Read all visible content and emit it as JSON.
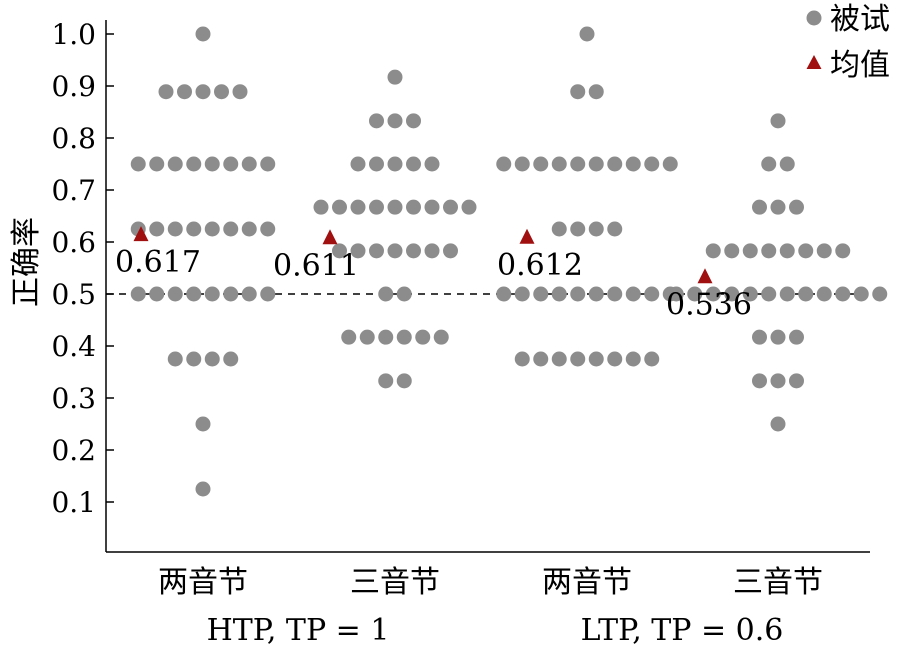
{
  "chart_data": {
    "type": "scatter",
    "ylabel": "正确率",
    "ylim": [
      0,
      1.0
    ],
    "yticks": [
      "0.1",
      "0.2",
      "0.3",
      "0.4",
      "0.5",
      "0.6",
      "0.7",
      "0.8",
      "0.9",
      "1.0"
    ],
    "reference_line": 0.5,
    "legend_position": "top-right",
    "legend": [
      {
        "label": "被试",
        "marker": "circle",
        "color": "#8c8c8c"
      },
      {
        "label": "均值",
        "marker": "triangle",
        "color": "#a01010"
      }
    ],
    "groups": [
      {
        "label": "HTP, TP = 1",
        "categories": [
          "两音节",
          "三音节"
        ]
      },
      {
        "label": "LTP, TP = 0.6",
        "categories": [
          "两音节",
          "三音节"
        ]
      }
    ],
    "series": [
      {
        "category": "两音节",
        "group": "HTP, TP = 1",
        "mean": 0.617,
        "mean_label": "0.617",
        "points": [
          {
            "y": 1.0,
            "n": 1
          },
          {
            "y": 0.889,
            "n": 5
          },
          {
            "y": 0.75,
            "n": 8
          },
          {
            "y": 0.625,
            "n": 8
          },
          {
            "y": 0.5,
            "n": 8
          },
          {
            "y": 0.375,
            "n": 4
          },
          {
            "y": 0.25,
            "n": 1
          },
          {
            "y": 0.125,
            "n": 1
          }
        ]
      },
      {
        "category": "三音节",
        "group": "HTP, TP = 1",
        "mean": 0.611,
        "mean_label": "0.611",
        "points": [
          {
            "y": 0.917,
            "n": 1
          },
          {
            "y": 0.833,
            "n": 3
          },
          {
            "y": 0.75,
            "n": 5
          },
          {
            "y": 0.667,
            "n": 9
          },
          {
            "y": 0.583,
            "n": 7
          },
          {
            "y": 0.5,
            "n": 2
          },
          {
            "y": 0.417,
            "n": 6
          },
          {
            "y": 0.333,
            "n": 2
          }
        ]
      },
      {
        "category": "两音节",
        "group": "LTP, TP = 0.6",
        "mean": 0.612,
        "mean_label": "0.612",
        "points": [
          {
            "y": 1.0,
            "n": 1
          },
          {
            "y": 0.889,
            "n": 2
          },
          {
            "y": 0.75,
            "n": 10
          },
          {
            "y": 0.625,
            "n": 4
          },
          {
            "y": 0.5,
            "n": 10
          },
          {
            "y": 0.375,
            "n": 8
          }
        ]
      },
      {
        "category": "三音节",
        "group": "LTP, TP = 0.6",
        "mean": 0.536,
        "mean_label": "0.536",
        "points": [
          {
            "y": 0.833,
            "n": 1
          },
          {
            "y": 0.75,
            "n": 2
          },
          {
            "y": 0.667,
            "n": 3
          },
          {
            "y": 0.583,
            "n": 8
          },
          {
            "y": 0.5,
            "n": 12
          },
          {
            "y": 0.417,
            "n": 3
          },
          {
            "y": 0.333,
            "n": 3
          },
          {
            "y": 0.25,
            "n": 1
          }
        ]
      }
    ]
  }
}
